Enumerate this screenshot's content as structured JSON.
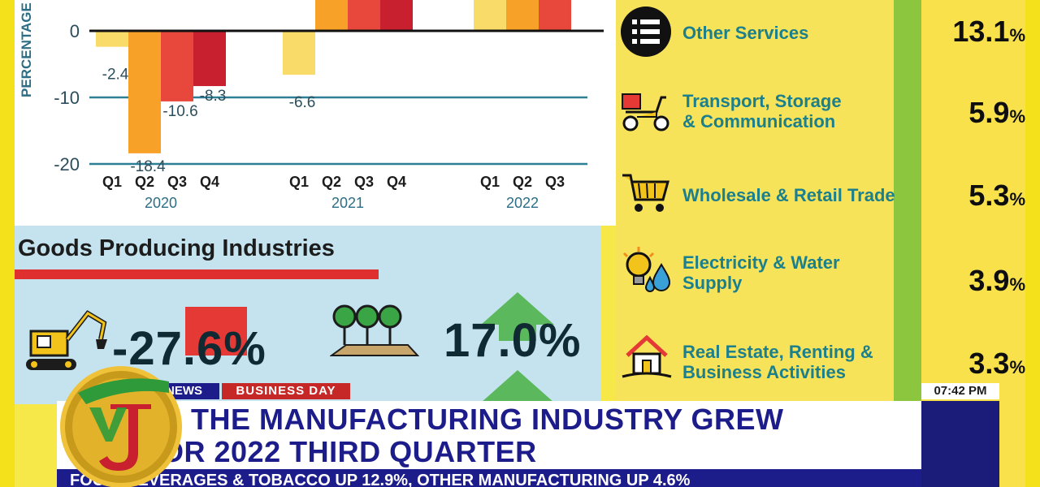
{
  "chart_data": {
    "type": "bar",
    "ylabel": "PERCENTAGE",
    "yticks": [
      "0",
      "-10",
      "-20"
    ],
    "ylim": [
      -20,
      5
    ],
    "groups": [
      {
        "year": "2020",
        "quarters": [
          "Q1",
          "Q2",
          "Q3",
          "Q4"
        ],
        "values": [
          -2.4,
          -18.4,
          -10.6,
          -8.3
        ],
        "labels": [
          "-2.4",
          "-18.4",
          "-10.6",
          "-8.3"
        ]
      },
      {
        "year": "2021",
        "quarters": [
          "Q1",
          "Q2",
          "Q3",
          "Q4"
        ],
        "values": [
          -6.6,
          null,
          null,
          null
        ],
        "labels": [
          "-6.6",
          "",
          "",
          ""
        ]
      },
      {
        "year": "2022",
        "quarters": [
          "Q1",
          "Q2",
          "Q3"
        ],
        "values": [
          null,
          null,
          null
        ],
        "labels": [
          "",
          "",
          ""
        ]
      }
    ],
    "colors": [
      "#f9db6a",
      "#f7a128",
      "#e8473c",
      "#c8202f"
    ]
  },
  "goods": {
    "title": "Goods Producing Industries",
    "mining_value": "-27.6%",
    "forestry_value": "17.0%"
  },
  "services": [
    {
      "label": "Other Services",
      "value": "13.1",
      "icon": "list-icon"
    },
    {
      "label": "Transport, Storage\n& Communication",
      "value": "5.9",
      "icon": "scooter-icon"
    },
    {
      "label": "Wholesale & Retail Trade",
      "value": "5.3",
      "icon": "cart-icon"
    },
    {
      "label": "Electricity & Water\nSupply",
      "value": "3.9",
      "icon": "bulb-icon"
    },
    {
      "label": "Real Estate, Renting &\nBusiness Activities",
      "value": "3.3",
      "icon": "house-icon"
    }
  ],
  "pct_sign": "%",
  "lower_third": {
    "news_tag": "NEWS",
    "section_tag": "BUSINESS DAY",
    "time": "07:42 PM",
    "headline": "R THE MANUFACTURING INDUSTRY GREW\nOR 2022 THIRD QUARTER",
    "ticker": "FOOD, BEVERAGES & TOBACCO UP 12.9%, OTHER MANUFACTURING UP 4.6%"
  },
  "brand": {
    "logo": "TVJ"
  }
}
